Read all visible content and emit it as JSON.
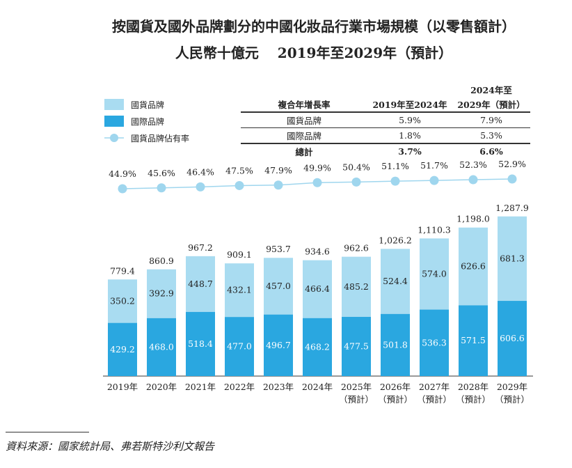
{
  "title": "按國貨及國外品牌劃分的中國化妝品行業市場規模（以零售額計）",
  "subtitle": "人民幣十億元　 2019年至2029年（預計）",
  "colors": {
    "domestic": "#a9dcf1",
    "international": "#2aa7e0",
    "share_line": "#9fd6ee"
  },
  "legend": [
    "國貨品牌",
    "國際品牌",
    "國貨品牌佔有率"
  ],
  "cagr_table": {
    "header": [
      "複合年增長率",
      "2019年至2024年",
      "2024年至",
      "2029年（預計）"
    ],
    "rows": [
      [
        "國貨品牌",
        "5.9%",
        "7.9%"
      ],
      [
        "國際品牌",
        "1.8%",
        "5.3%"
      ],
      [
        "總計",
        "3.7%",
        "6.6%"
      ]
    ]
  },
  "chart_data": {
    "type": "bar",
    "stacked": true,
    "categories": [
      "2019年",
      "2020年",
      "2021年",
      "2022年",
      "2023年",
      "2024年",
      "2025年",
      "2026年",
      "2027年",
      "2028年",
      "2029年"
    ],
    "category_notes": [
      "",
      "",
      "",
      "",
      "",
      "",
      "（預計）",
      "（預計）",
      "（預計）",
      "（預計）",
      "（預計）"
    ],
    "series": [
      {
        "name": "國際品牌",
        "values": [
          429.2,
          468.0,
          518.4,
          477.0,
          496.7,
          468.2,
          477.5,
          501.8,
          536.3,
          571.5,
          606.6
        ]
      },
      {
        "name": "國貨品牌",
        "values": [
          350.2,
          392.9,
          448.7,
          432.1,
          457.0,
          466.4,
          485.2,
          524.4,
          574.0,
          626.6,
          681.3
        ]
      }
    ],
    "totals": [
      "779.4",
      "860.9",
      "967.2",
      "909.1",
      "953.7",
      "934.6",
      "962.6",
      "1,026.2",
      "1,110.3",
      "1,198.0",
      "1,287.9"
    ],
    "line": {
      "name": "國貨品牌佔有率",
      "values": [
        44.9,
        45.6,
        46.4,
        47.5,
        47.9,
        49.9,
        50.4,
        51.1,
        51.7,
        52.3,
        52.9
      ]
    }
  },
  "source": "資料來源：國家統計局、弗若斯特沙利文報告"
}
